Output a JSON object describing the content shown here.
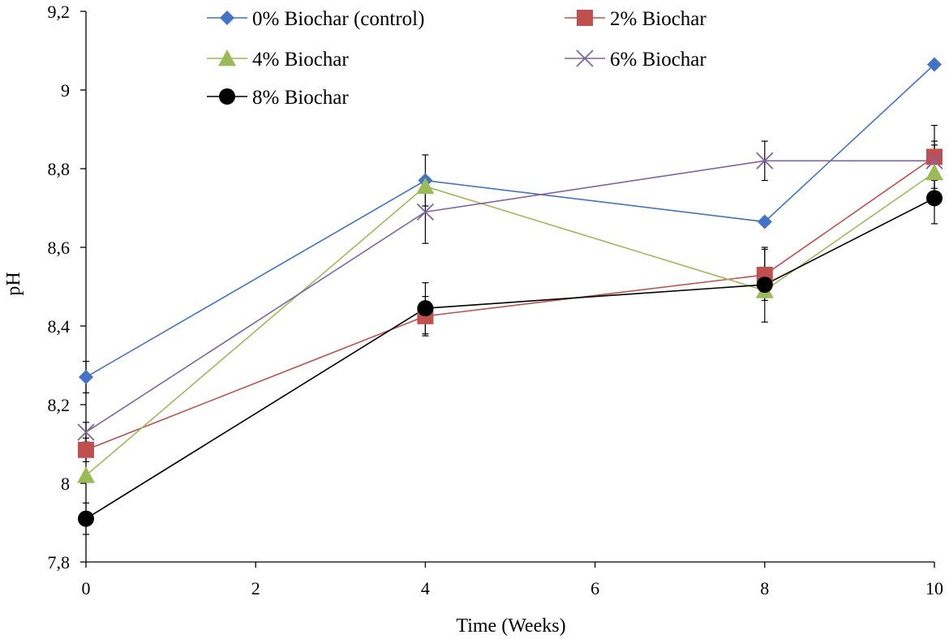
{
  "chart_data": {
    "type": "line",
    "title": "",
    "xlabel": "Time (Weeks)",
    "ylabel": "pH",
    "xlim": [
      0,
      10
    ],
    "ylim": [
      7.8,
      9.2
    ],
    "x_ticks": [
      0,
      2,
      4,
      6,
      8,
      10
    ],
    "x_tick_labels": [
      "0",
      "2",
      "4",
      "6",
      "8",
      "10"
    ],
    "y_ticks": [
      7.8,
      8.0,
      8.2,
      8.4,
      8.6,
      8.8,
      9.0,
      9.2
    ],
    "y_tick_labels": [
      "7,8",
      "8",
      "8,2",
      "8,4",
      "8,6",
      "8,8",
      "9",
      "9,2"
    ],
    "grid": false,
    "legend_position": "top",
    "x": [
      0,
      4,
      8,
      10
    ],
    "series": [
      {
        "name": "0% Biochar (control)",
        "color": "#4472C4",
        "marker": "diamond",
        "values": [
          8.27,
          8.77,
          8.665,
          9.065
        ],
        "errors": [
          0.04,
          0.065,
          0,
          0
        ]
      },
      {
        "name": "2% Biochar",
        "color": "#C0504D",
        "marker": "square",
        "values": [
          8.085,
          8.425,
          8.53,
          8.83
        ],
        "errors": [
          0.03,
          0.05,
          0.065,
          0.08
        ]
      },
      {
        "name": "4% Biochar",
        "color": "#9BBB59",
        "marker": "triangle",
        "values": [
          8.02,
          8.755,
          8.49,
          8.79
        ],
        "errors": [
          0,
          0,
          0,
          0.07
        ]
      },
      {
        "name": "6% Biochar",
        "color": "#8064A2",
        "marker": "x",
        "values": [
          8.13,
          8.69,
          8.82,
          8.82
        ],
        "errors": [
          0.025,
          0.08,
          0.05,
          0.05
        ]
      },
      {
        "name": "8% Biochar",
        "color": "#000000",
        "marker": "circle",
        "values": [
          7.91,
          8.445,
          8.505,
          8.725
        ],
        "errors": [
          0.04,
          0.065,
          0.095,
          0.065
        ]
      }
    ]
  }
}
